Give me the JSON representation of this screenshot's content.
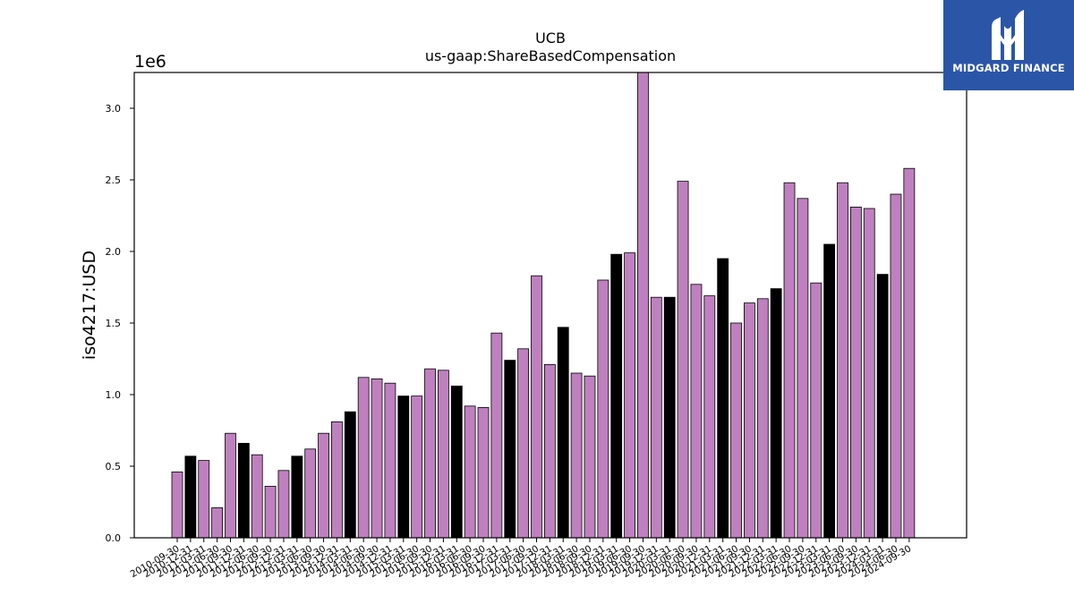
{
  "brand": {
    "name": "MIDGARD FINANCE",
    "color": "#2b56a8",
    "icon": "midgard-logo-icon"
  },
  "chart_data": {
    "type": "bar",
    "title": "UCB",
    "subtitle": "us-gaap:ShareBasedCompensation",
    "ylabel": "iso4217:USD",
    "xlabel": "",
    "y_scale_label": "1e6",
    "ylim": [
      0,
      3.25
    ],
    "yticks": [
      "0.0",
      "0.5",
      "1.0",
      "1.5",
      "2.0",
      "2.5",
      "3.0"
    ],
    "grid": false,
    "colors": {
      "quarter": "#bf80bf",
      "fiscal_year": "#000000"
    },
    "categories": [
      "2010-09-30",
      "2010-12-31",
      "2011-03-31",
      "2011-06-30",
      "2011-09-30",
      "2011-12-31",
      "2012-06-30",
      "2012-09-30",
      "2012-12-31",
      "2013-03-31",
      "2013-06-30",
      "2013-09-30",
      "2013-12-31",
      "2014-03-31",
      "2014-06-30",
      "2014-09-30",
      "2014-12-31",
      "2015-03-31",
      "2015-06-30",
      "2015-09-30",
      "2015-12-31",
      "2016-03-31",
      "2016-06-30",
      "2016-09-30",
      "2016-12-31",
      "2017-03-31",
      "2017-06-30",
      "2017-09-30",
      "2017-12-31",
      "2018-03-31",
      "2018-06-30",
      "2018-09-30",
      "2018-12-31",
      "2019-03-31",
      "2019-06-30",
      "2019-09-30",
      "2019-12-31",
      "2020-03-31",
      "2020-06-30",
      "2020-09-30",
      "2020-12-31",
      "2021-03-31",
      "2021-06-30",
      "2021-09-30",
      "2021-12-31",
      "2022-03-31",
      "2022-06-30",
      "2022-09-30",
      "2022-12-31",
      "2023-03-31",
      "2023-06-30",
      "2023-09-30",
      "2023-12-31",
      "2024-03-31",
      "2024-06-30",
      "2024-09-30"
    ],
    "values": [
      0.46,
      0.57,
      0.54,
      0.21,
      0.73,
      0.66,
      0.58,
      0.36,
      0.47,
      0.57,
      0.62,
      0.73,
      0.81,
      0.88,
      1.12,
      1.11,
      1.08,
      0.99,
      0.99,
      1.18,
      1.17,
      1.06,
      0.92,
      0.91,
      1.43,
      1.24,
      1.32,
      1.83,
      1.21,
      1.47,
      1.15,
      1.13,
      1.8,
      1.98,
      1.99,
      3.26,
      1.68,
      1.68,
      2.49,
      1.77,
      1.69,
      1.95,
      1.5,
      1.64,
      1.67,
      1.74,
      2.48,
      2.37,
      1.78,
      2.05,
      2.48,
      2.31,
      2.3,
      1.84,
      2.4,
      2.58
    ],
    "fiscal_year_flags": [
      0,
      1,
      0,
      0,
      0,
      1,
      0,
      0,
      0,
      1,
      0,
      0,
      0,
      1,
      0,
      0,
      0,
      1,
      0,
      0,
      0,
      1,
      0,
      0,
      0,
      1,
      0,
      0,
      0,
      1,
      0,
      0,
      0,
      1,
      0,
      0,
      0,
      1,
      0,
      0,
      0,
      1,
      0,
      0,
      0,
      1,
      0,
      0,
      0,
      1,
      0,
      0,
      0,
      1,
      0,
      0
    ]
  }
}
